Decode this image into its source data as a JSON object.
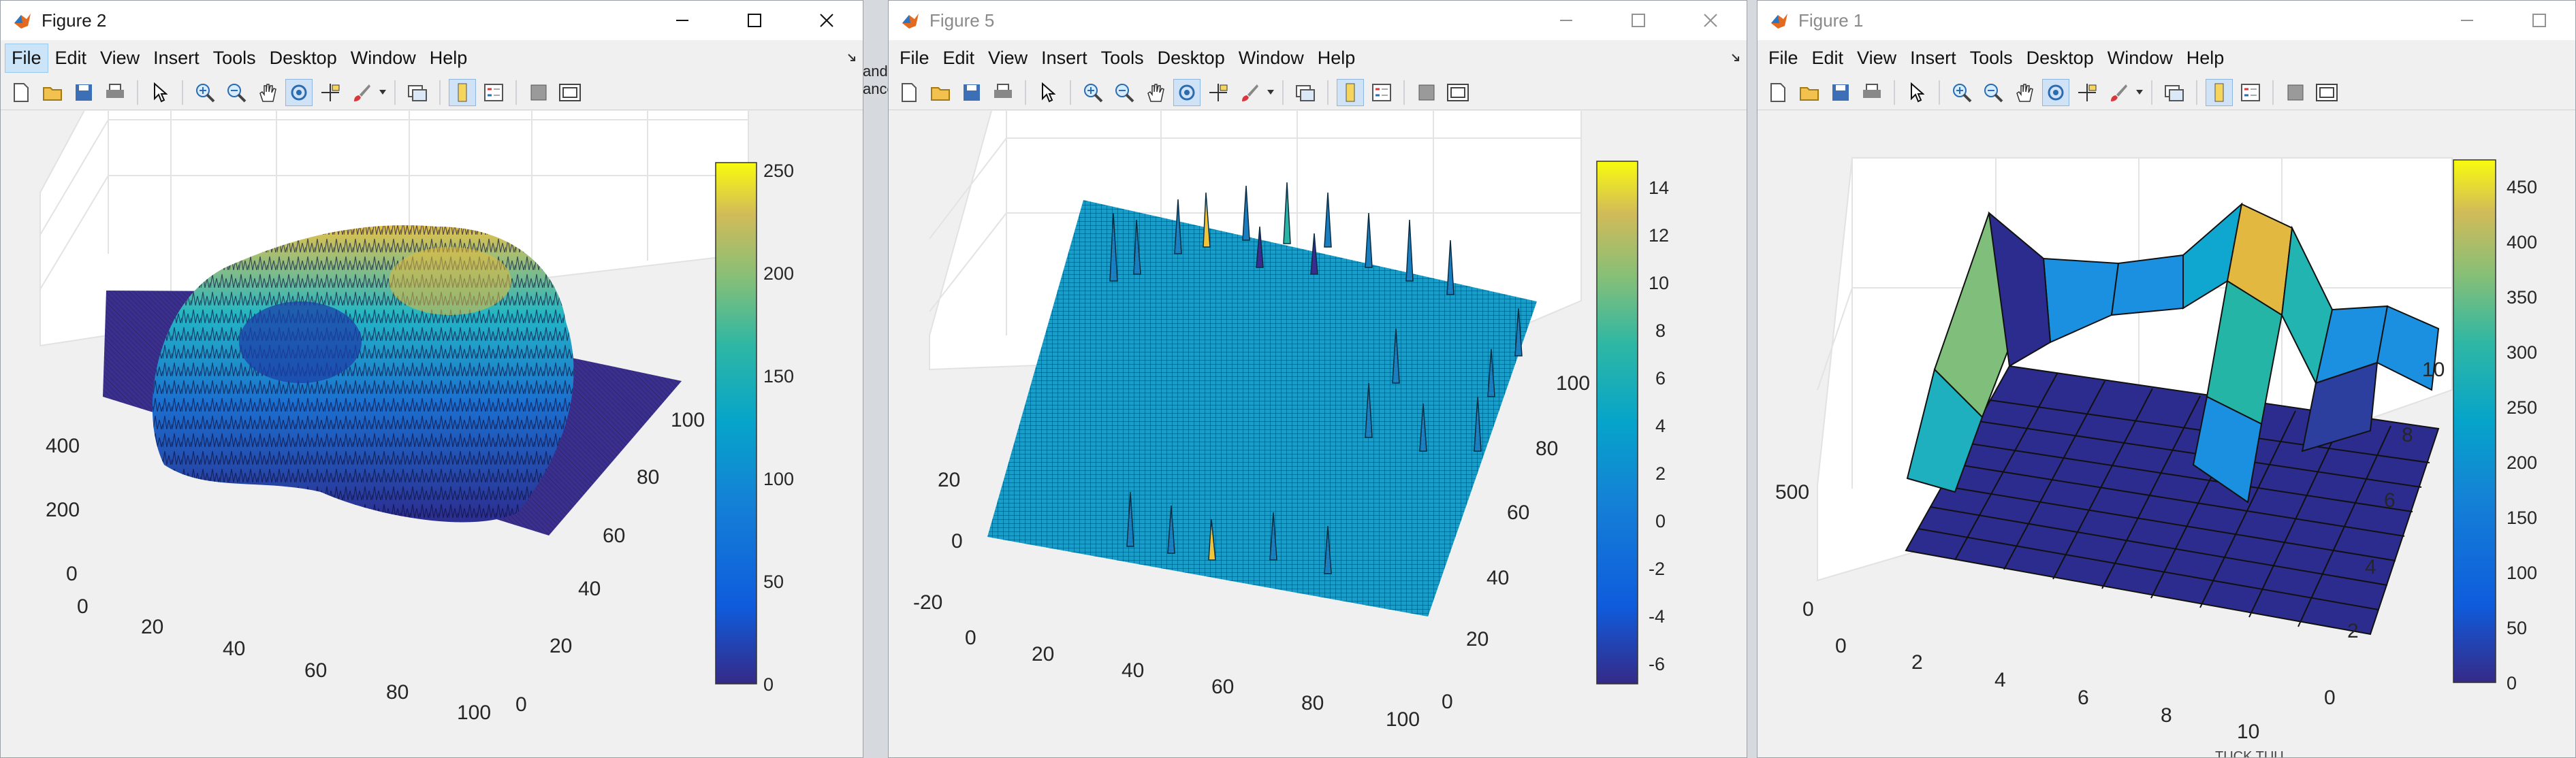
{
  "windows": [
    {
      "title": "Figure 2",
      "active": true,
      "menu": [
        "File",
        "Edit",
        "View",
        "Insert",
        "Tools",
        "Desktop",
        "Window",
        "Help"
      ],
      "axes": {
        "x_ticks": [
          "0",
          "20",
          "40",
          "60",
          "80",
          "100"
        ],
        "y_ticks": [
          "0",
          "20",
          "40",
          "60",
          "80",
          "100"
        ],
        "z_ticks": [
          "0",
          "200",
          "400"
        ],
        "colorbar_ticks": [
          "0",
          "50",
          "100",
          "150",
          "200",
          "250"
        ]
      }
    },
    {
      "title": "Figure 5",
      "active": false,
      "menu": [
        "File",
        "Edit",
        "View",
        "Insert",
        "Tools",
        "Desktop",
        "Window",
        "Help"
      ],
      "axes": {
        "x_ticks": [
          "0",
          "20",
          "40",
          "60",
          "80",
          "100"
        ],
        "y_ticks": [
          "0",
          "20",
          "40",
          "60",
          "80",
          "100"
        ],
        "z_ticks": [
          "-20",
          "0",
          "20"
        ],
        "colorbar_ticks": [
          "-6",
          "-4",
          "-2",
          "0",
          "2",
          "4",
          "6",
          "8",
          "10",
          "12",
          "14"
        ]
      }
    },
    {
      "title": "Figure 1",
      "active": false,
      "menu": [
        "File",
        "Edit",
        "View",
        "Insert",
        "Tools",
        "Desktop",
        "Window",
        "Help"
      ],
      "axes": {
        "x_ticks": [
          "0",
          "2",
          "4",
          "6",
          "8",
          "10"
        ],
        "y_ticks": [
          "0",
          "2",
          "4",
          "6",
          "8",
          "10"
        ],
        "z_ticks": [
          "0",
          "500"
        ],
        "colorbar_ticks": [
          "0",
          "50",
          "100",
          "150",
          "200",
          "250",
          "300",
          "350",
          "400",
          "450"
        ]
      }
    }
  ],
  "background_fragments": {
    "strip1": [
      "and",
      "ance"
    ],
    "taskbar_text": "TUCK TUU..."
  },
  "colors": {
    "parula_low": "#352a87",
    "parula_mid": "#0da2d6",
    "parula_high": "#f9fb0e",
    "active_menu": "#cce4f7"
  }
}
